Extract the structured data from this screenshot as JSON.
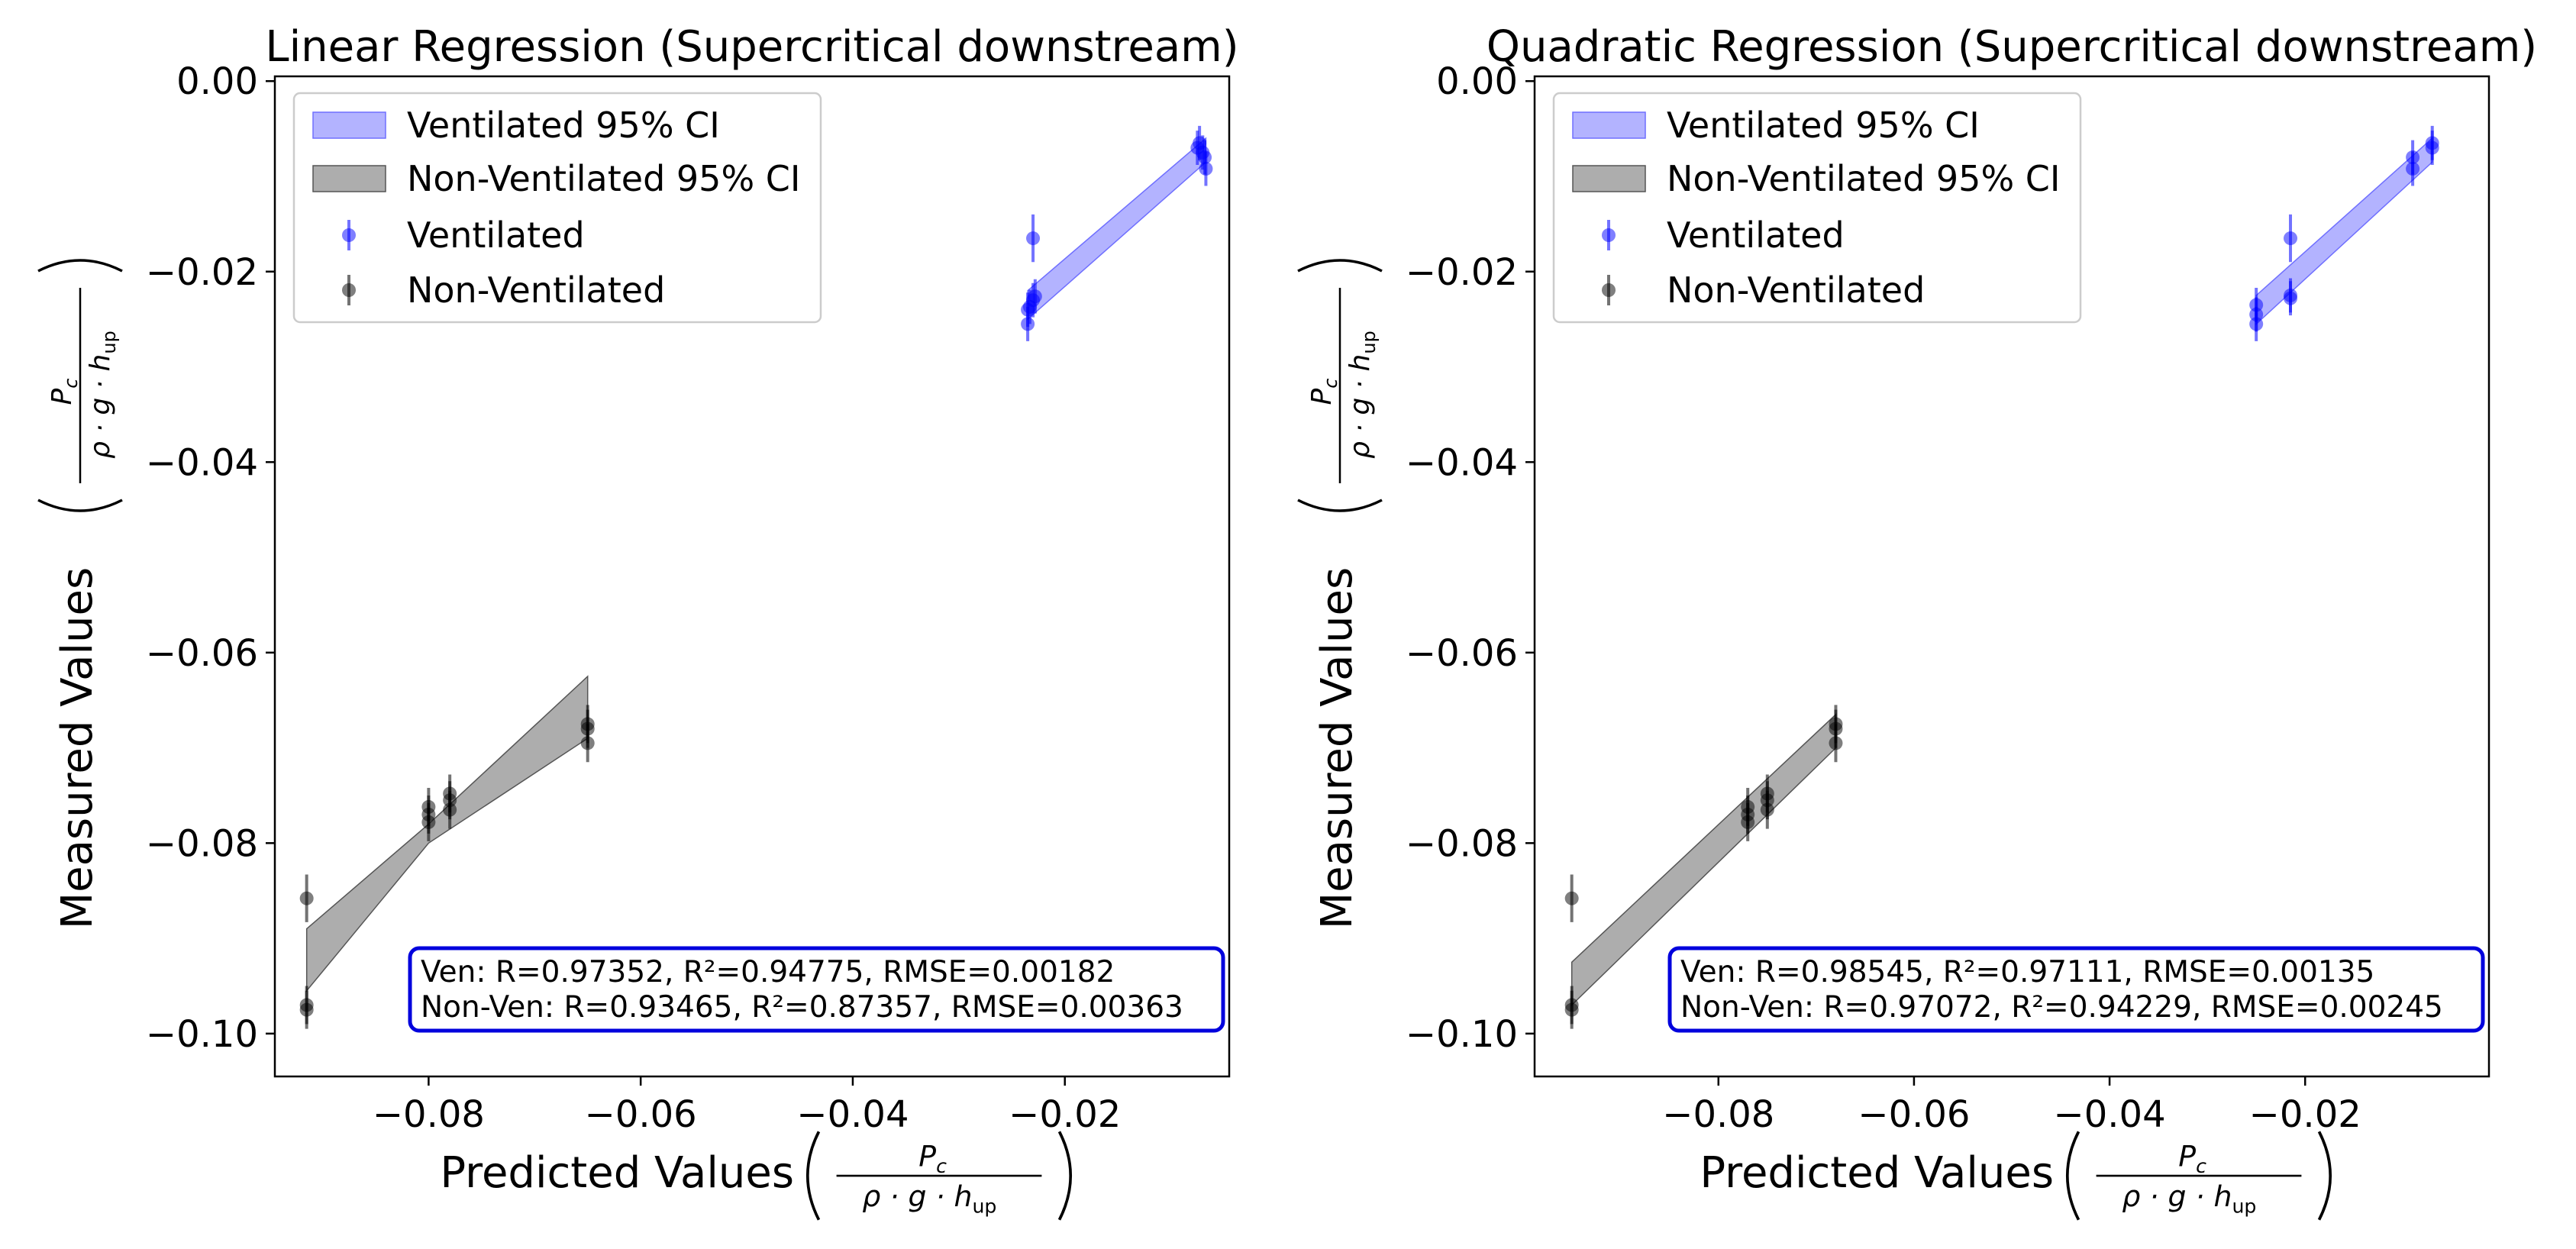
{
  "chart_data": [
    {
      "type": "scatter",
      "title": "Linear Regression (Supercritical downstream)",
      "xlabel_prefix": "Predicted Values",
      "ylabel_prefix": "Measured Values",
      "xlabel": "Predicted Values (P_c / (ρ · g · h_up))",
      "ylabel": "Measured Values (P_c / (ρ · g · h_up))",
      "frac_num": "P",
      "frac_num_sub": "c",
      "frac_den": "ρ · g · h",
      "frac_den_sub": "up",
      "xlim": [
        -0.0945,
        -0.0045
      ],
      "ylim": [
        -0.1045,
        0.0005
      ],
      "xticks": [
        -0.08,
        -0.06,
        -0.04,
        -0.02
      ],
      "xtick_labels": [
        "−0.08",
        "−0.06",
        "−0.04",
        "−0.02"
      ],
      "yticks": [
        0.0,
        -0.02,
        -0.04,
        -0.06,
        -0.08,
        -0.1
      ],
      "ytick_labels": [
        "0.00",
        "−0.02",
        "−0.04",
        "−0.06",
        "−0.08",
        "−0.10"
      ],
      "grid": false,
      "legend": {
        "position": "upper-left",
        "entries": [
          "Ventilated 95% CI",
          "Non-Ventilated 95% CI",
          "Ventilated",
          "Non-Ventilated"
        ]
      },
      "annotation_lines": [
        "Ven: R=0.97352, R²=0.94775, RMSE=0.00182",
        "Non-Ven: R=0.93465, R²=0.87357, RMSE=0.00363"
      ],
      "series": [
        {
          "name": "Ventilated",
          "color": "#0000ff",
          "points": [
            {
              "x": -0.0235,
              "y": -0.024,
              "err": 0.0018
            },
            {
              "x": -0.0235,
              "y": -0.0255,
              "err": 0.0018
            },
            {
              "x": -0.0233,
              "y": -0.0237,
              "err": 0.0018
            },
            {
              "x": -0.023,
              "y": -0.023,
              "err": 0.0018
            },
            {
              "x": -0.0228,
              "y": -0.0226,
              "err": 0.0018
            },
            {
              "x": -0.023,
              "y": -0.0165,
              "err": 0.0025
            },
            {
              "x": -0.0075,
              "y": -0.007,
              "err": 0.0018
            },
            {
              "x": -0.0073,
              "y": -0.0065,
              "err": 0.0018
            },
            {
              "x": -0.007,
              "y": -0.0075,
              "err": 0.0018
            },
            {
              "x": -0.0068,
              "y": -0.008,
              "err": 0.0018
            },
            {
              "x": -0.0067,
              "y": -0.0092,
              "err": 0.0018
            }
          ],
          "ci_band": [
            {
              "x": -0.0235,
              "lo": -0.025,
              "hi": -0.022
            },
            {
              "x": -0.0067,
              "lo": -0.0085,
              "hi": -0.006
            }
          ]
        },
        {
          "name": "Non-Ventilated",
          "color": "#000000",
          "points": [
            {
              "x": -0.0915,
              "y": -0.0858,
              "err": 0.0025
            },
            {
              "x": -0.0915,
              "y": -0.097,
              "err": 0.002
            },
            {
              "x": -0.0915,
              "y": -0.0975,
              "err": 0.002
            },
            {
              "x": -0.08,
              "y": -0.0762,
              "err": 0.002
            },
            {
              "x": -0.08,
              "y": -0.077,
              "err": 0.002
            },
            {
              "x": -0.08,
              "y": -0.0778,
              "err": 0.002
            },
            {
              "x": -0.078,
              "y": -0.0748,
              "err": 0.002
            },
            {
              "x": -0.078,
              "y": -0.0755,
              "err": 0.002
            },
            {
              "x": -0.078,
              "y": -0.0765,
              "err": 0.002
            },
            {
              "x": -0.065,
              "y": -0.0675,
              "err": 0.002
            },
            {
              "x": -0.065,
              "y": -0.068,
              "err": 0.002
            },
            {
              "x": -0.065,
              "y": -0.0695,
              "err": 0.002
            }
          ],
          "ci_band": [
            {
              "x": -0.0915,
              "lo": -0.0955,
              "hi": -0.089
            },
            {
              "x": -0.08,
              "lo": -0.08,
              "hi": -0.078
            },
            {
              "x": -0.065,
              "lo": -0.069,
              "hi": -0.0625
            }
          ]
        }
      ]
    },
    {
      "type": "scatter",
      "title": "Quadratic Regression (Supercritical downstream)",
      "xlabel_prefix": "Predicted Values",
      "ylabel_prefix": "Measured Values",
      "xlabel": "Predicted Values (P_c / (ρ · g · h_up))",
      "ylabel": "Measured Values (P_c / (ρ · g · h_up))",
      "frac_num": "P",
      "frac_num_sub": "c",
      "frac_den": "ρ · g · h",
      "frac_den_sub": "up",
      "xlim": [
        -0.0988,
        -0.0012
      ],
      "ylim": [
        -0.1045,
        0.0005
      ],
      "xticks": [
        -0.08,
        -0.06,
        -0.04,
        -0.02
      ],
      "xtick_labels": [
        "−0.08",
        "−0.06",
        "−0.04",
        "−0.02"
      ],
      "yticks": [
        0.0,
        -0.02,
        -0.04,
        -0.06,
        -0.08,
        -0.1
      ],
      "ytick_labels": [
        "0.00",
        "−0.02",
        "−0.04",
        "−0.06",
        "−0.08",
        "−0.10"
      ],
      "grid": false,
      "legend": {
        "position": "upper-left",
        "entries": [
          "Ventilated 95% CI",
          "Non-Ventilated 95% CI",
          "Ventilated",
          "Non-Ventilated"
        ]
      },
      "annotation_lines": [
        "Ven: R=0.98545, R²=0.97111, RMSE=0.00135",
        "Non-Ven: R=0.97072, R²=0.94229, RMSE=0.00245"
      ],
      "series": [
        {
          "name": "Ventilated",
          "color": "#0000ff",
          "points": [
            {
              "x": -0.025,
              "y": -0.0235,
              "err": 0.0018
            },
            {
              "x": -0.025,
              "y": -0.0245,
              "err": 0.0018
            },
            {
              "x": -0.025,
              "y": -0.0255,
              "err": 0.0018
            },
            {
              "x": -0.0215,
              "y": -0.0225,
              "err": 0.0018
            },
            {
              "x": -0.0215,
              "y": -0.0228,
              "err": 0.0018
            },
            {
              "x": -0.0215,
              "y": -0.0165,
              "err": 0.0025
            },
            {
              "x": -0.009,
              "y": -0.008,
              "err": 0.0018
            },
            {
              "x": -0.009,
              "y": -0.0092,
              "err": 0.0018
            },
            {
              "x": -0.007,
              "y": -0.0065,
              "err": 0.0018
            },
            {
              "x": -0.007,
              "y": -0.007,
              "err": 0.0018
            }
          ],
          "ci_band": [
            {
              "x": -0.025,
              "lo": -0.0255,
              "hi": -0.0225
            },
            {
              "x": -0.007,
              "lo": -0.0085,
              "hi": -0.006
            }
          ]
        },
        {
          "name": "Non-Ventilated",
          "color": "#000000",
          "points": [
            {
              "x": -0.095,
              "y": -0.0858,
              "err": 0.0025
            },
            {
              "x": -0.095,
              "y": -0.097,
              "err": 0.002
            },
            {
              "x": -0.095,
              "y": -0.0975,
              "err": 0.002
            },
            {
              "x": -0.077,
              "y": -0.0762,
              "err": 0.002
            },
            {
              "x": -0.077,
              "y": -0.077,
              "err": 0.002
            },
            {
              "x": -0.077,
              "y": -0.0778,
              "err": 0.002
            },
            {
              "x": -0.075,
              "y": -0.0748,
              "err": 0.002
            },
            {
              "x": -0.075,
              "y": -0.0755,
              "err": 0.002
            },
            {
              "x": -0.075,
              "y": -0.0765,
              "err": 0.002
            },
            {
              "x": -0.068,
              "y": -0.0675,
              "err": 0.002
            },
            {
              "x": -0.068,
              "y": -0.068,
              "err": 0.002
            },
            {
              "x": -0.068,
              "y": -0.0695,
              "err": 0.002
            }
          ],
          "ci_band": [
            {
              "x": -0.095,
              "lo": -0.097,
              "hi": -0.0925
            },
            {
              "x": -0.068,
              "lo": -0.07,
              "hi": -0.0665
            }
          ]
        }
      ]
    }
  ],
  "colors": {
    "ventilated": "#0000ff",
    "non_ventilated": "#000000",
    "ventilated_ci": "#9999ff",
    "non_ventilated_ci": "#999999",
    "annotation_border": "#0000dd"
  }
}
